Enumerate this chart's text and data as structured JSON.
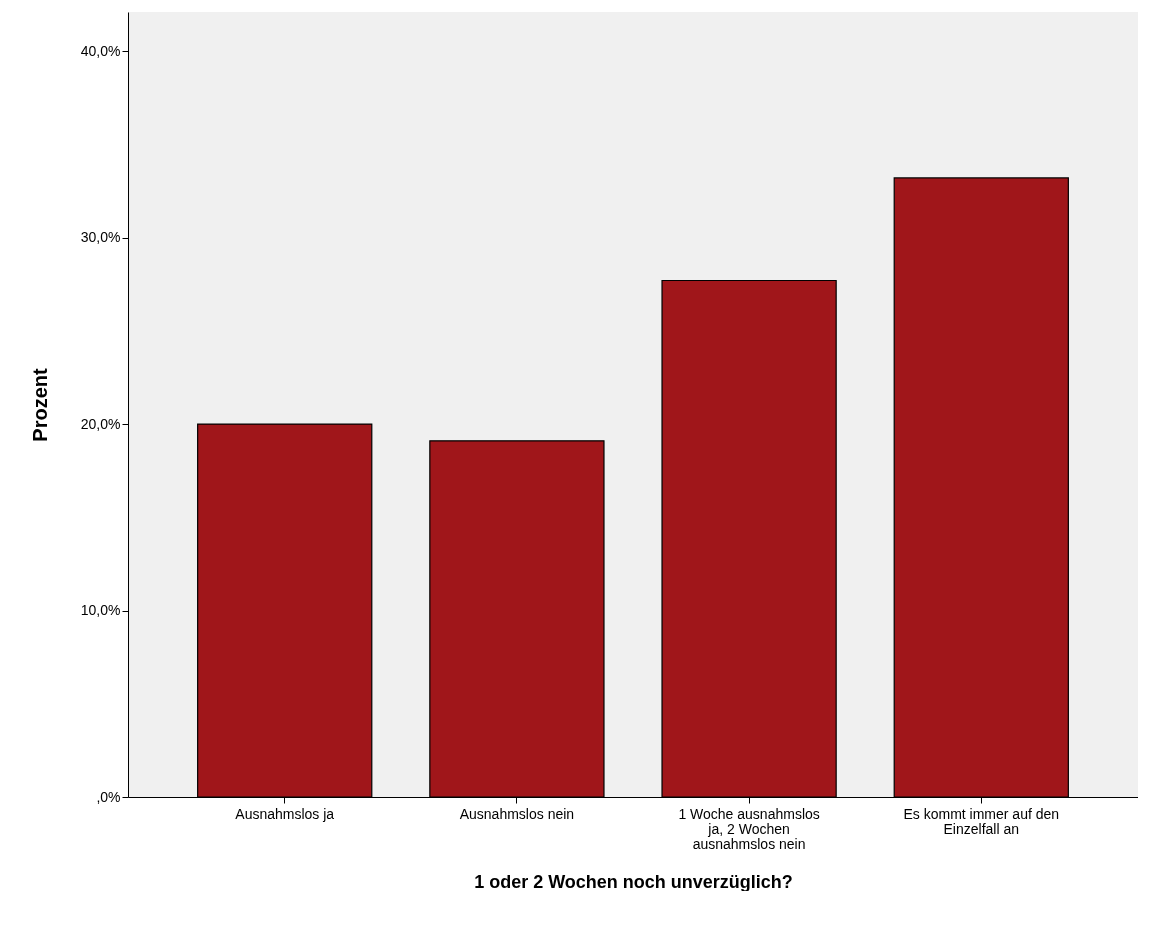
{
  "chart_data": {
    "type": "bar",
    "categories": [
      "Ausnahmslos ja",
      "Ausnahmslos nein",
      "1 Woche ausnahmslos ja, 2 Wochen ausnahmslos nein",
      "Es kommt immer auf den Einzelfall an"
    ],
    "values": [
      20.0,
      19.1,
      27.7,
      33.2
    ],
    "color": "#a0161a",
    "xlabel": "1 oder 2 Wochen noch unverzüglich?",
    "ylabel": "Prozent",
    "ylim": [
      0,
      42.1
    ],
    "yticks": [
      {
        "value": 0,
        "label": ",0%"
      },
      {
        "value": 10,
        "label": "10,0%"
      },
      {
        "value": 20,
        "label": "20,0%"
      },
      {
        "value": 30,
        "label": "30,0%"
      },
      {
        "value": 40,
        "label": "40,0%"
      }
    ],
    "grid": false
  }
}
